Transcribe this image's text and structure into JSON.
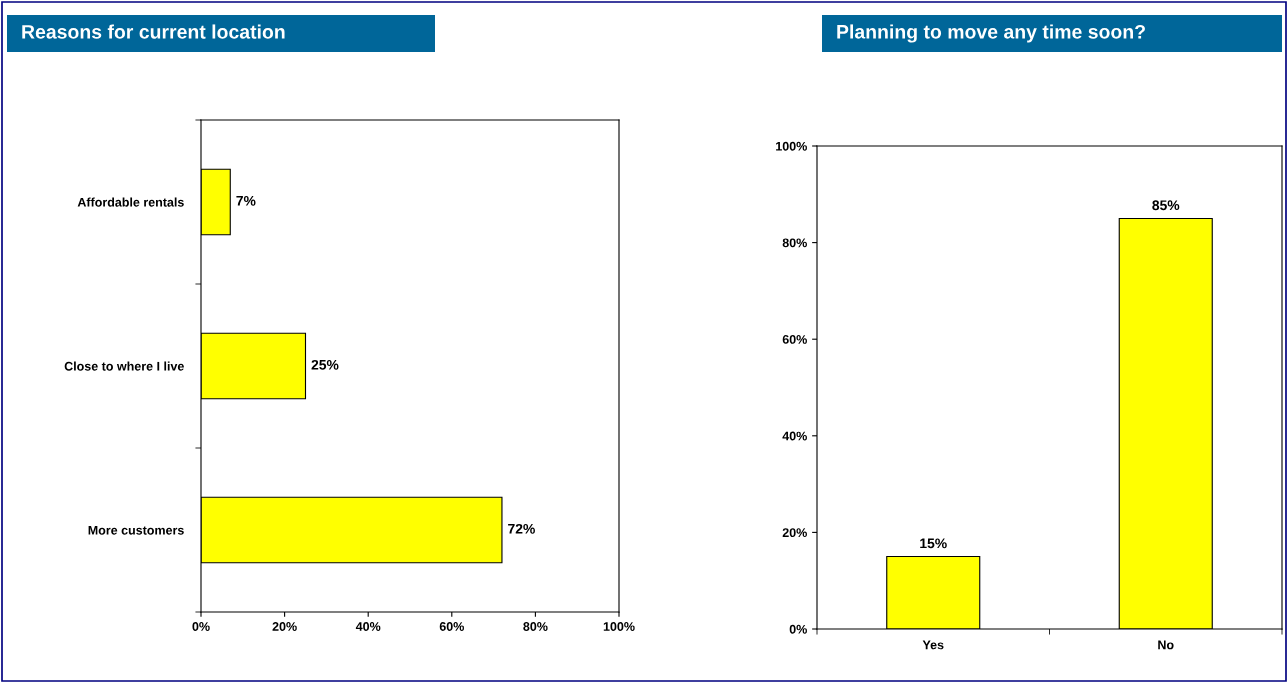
{
  "chart_data": [
    {
      "type": "bar",
      "title": "Reasons for current location",
      "orientation": "horizontal",
      "categories": [
        "Affordable rentals",
        "Close to where I live",
        "More customers"
      ],
      "values": [
        7,
        25,
        72
      ],
      "value_labels": [
        "7%",
        "25%",
        "72%"
      ],
      "color": "#ffff00",
      "xlim": [
        0,
        100
      ],
      "xticks": [
        {
          "value": 0,
          "label": "0%"
        },
        {
          "value": 20,
          "label": "20%"
        },
        {
          "value": 40,
          "label": "40%"
        },
        {
          "value": 60,
          "label": "60%"
        },
        {
          "value": 80,
          "label": "80%"
        },
        {
          "value": 100,
          "label": "100%"
        }
      ],
      "grid": false,
      "legend": false
    },
    {
      "type": "bar",
      "title": "Planning to move any time soon?",
      "categories": [
        "Yes",
        "No"
      ],
      "values": [
        15,
        85
      ],
      "value_labels": [
        "15%",
        "85%"
      ],
      "color": "#ffff00",
      "ylim": [
        0,
        100
      ],
      "yticks": [
        {
          "value": 0,
          "label": "0%"
        },
        {
          "value": 20,
          "label": "20%"
        },
        {
          "value": 40,
          "label": "40%"
        },
        {
          "value": 60,
          "label": "60%"
        },
        {
          "value": 80,
          "label": "80%"
        },
        {
          "value": 100,
          "label": "100%"
        }
      ],
      "grid": false,
      "legend": false
    }
  ]
}
